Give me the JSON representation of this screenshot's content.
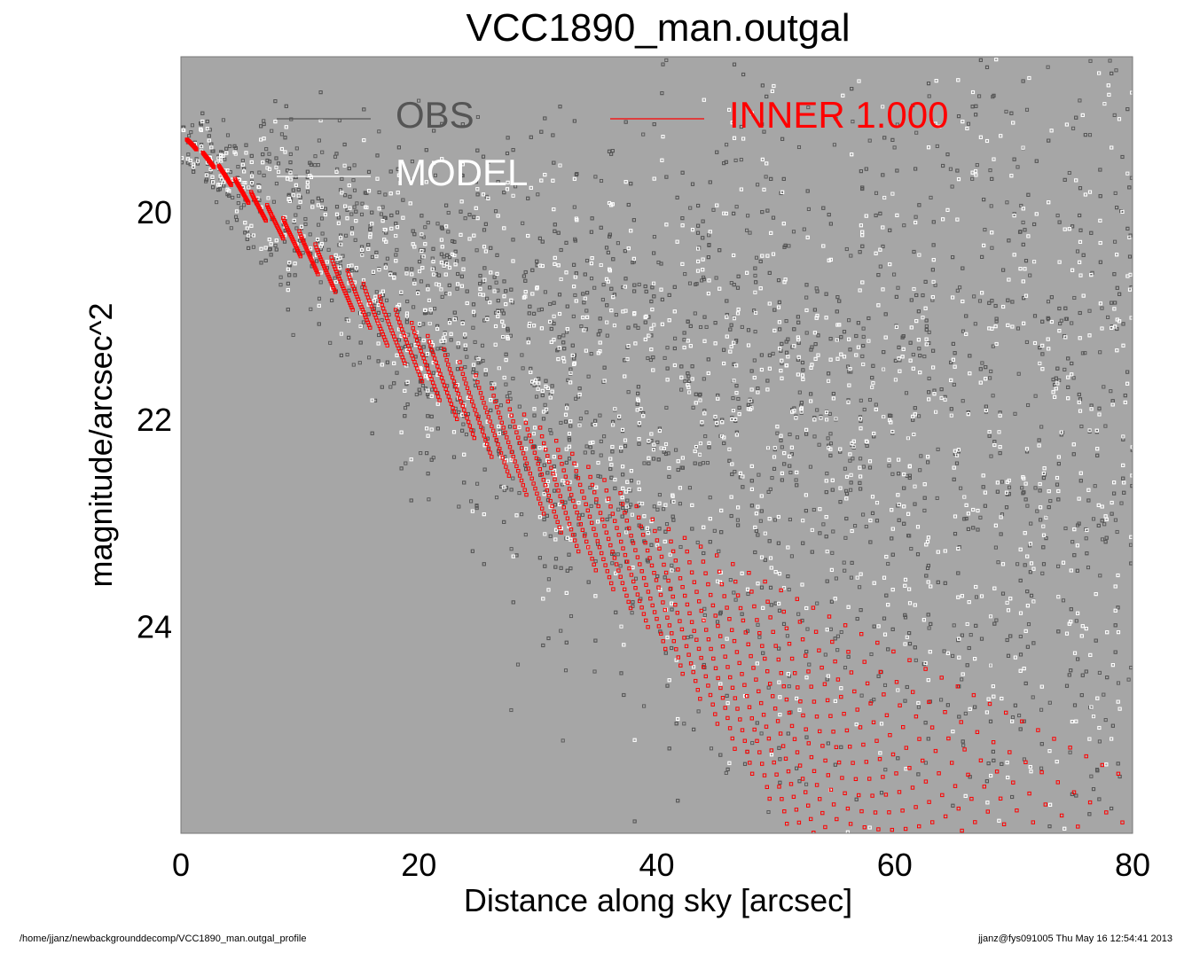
{
  "chart_data": {
    "type": "scatter",
    "title": "VCC1890_man.outgal",
    "xlabel": "Distance along sky [arcsec]",
    "ylabel": "magnitude/arcsec^2",
    "xlim": [
      0,
      80
    ],
    "ylim": [
      26.0,
      18.5
    ],
    "y_inverted": true,
    "xticks": [
      0,
      20,
      40,
      60,
      80
    ],
    "yticks": [
      20,
      22,
      24
    ],
    "grid": false,
    "background": "#a6a6a6",
    "legend": [
      {
        "label": "OBS",
        "color": "#555555"
      },
      {
        "label": "MODEL",
        "color": "#ffffff"
      },
      {
        "label": "INNER  1.000",
        "color": "#ff0000"
      }
    ],
    "series": [
      {
        "name": "OBS",
        "color": "#555555",
        "description_points": [
          [
            0.5,
            19.3
          ],
          [
            10,
            20.9
          ],
          [
            20,
            22.3
          ],
          [
            30,
            23.8
          ],
          [
            40,
            22.3
          ],
          [
            60,
            22.4
          ],
          [
            80,
            22.6
          ]
        ]
      },
      {
        "name": "MODEL",
        "color": "#ffffff",
        "description_points": [
          [
            0.5,
            19.3
          ],
          [
            10,
            20.9
          ],
          [
            20,
            22.2
          ],
          [
            40,
            22.0
          ],
          [
            60,
            22.1
          ],
          [
            80,
            22.3
          ]
        ]
      },
      {
        "name": "INNER  1.000",
        "color": "#ff0000",
        "upper_edge": [
          [
            0.5,
            19.3
          ],
          [
            40,
            23.0
          ],
          [
            80,
            25.5
          ]
        ],
        "lower_edge": [
          [
            0.5,
            19.3
          ],
          [
            20,
            21.6
          ],
          [
            40,
            24.1
          ],
          [
            51.5,
            26.0
          ]
        ]
      }
    ]
  },
  "footer": {
    "left": "/home/jjanz/newbackgrounddecomp/VCC1890_man.outgal_profile",
    "right": "jjanz@fys091005  Thu May 16 12:54:41 2013"
  }
}
